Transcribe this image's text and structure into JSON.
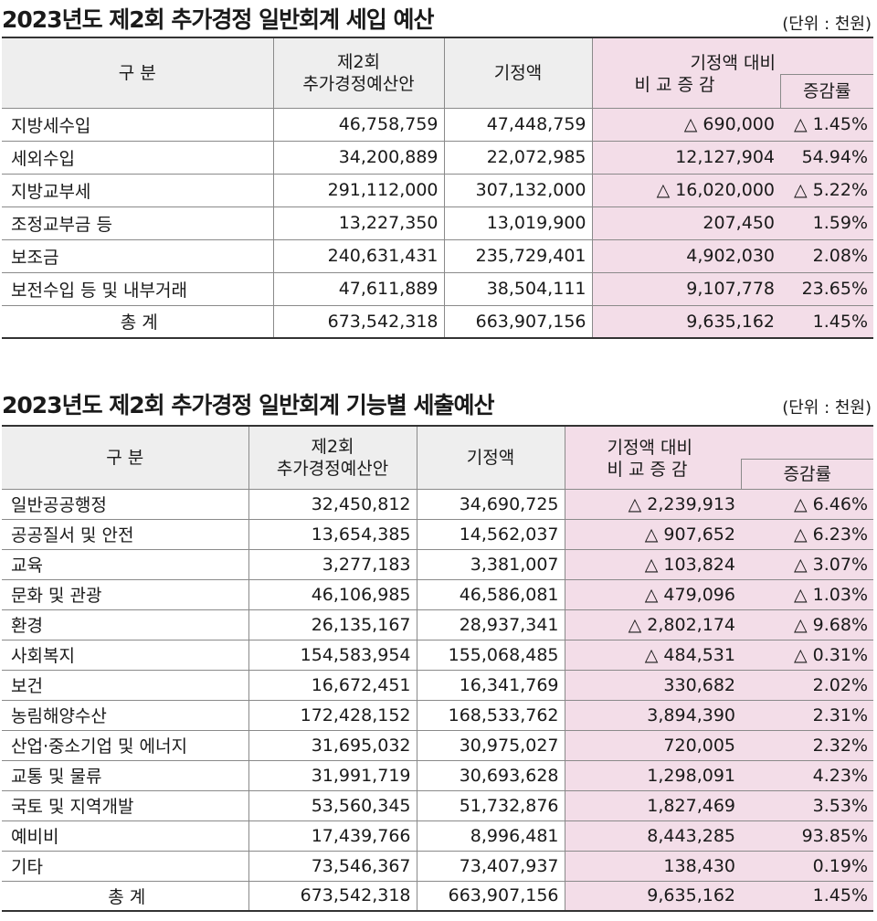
{
  "revenue": {
    "title": "2023년도 제2회 추가경정 일반회계 세입 예산",
    "unit": "(단위 : 천원)",
    "headers": {
      "category": "구 분",
      "proposal_line1": "제2회",
      "proposal_line2": "추가경정예산안",
      "existing": "기정액",
      "compare_line1": "기정액 대비",
      "compare_line2": "비 교 증 감",
      "rate": "증감률"
    },
    "rows": [
      {
        "name": "지방세수입",
        "proposal": "46,758,759",
        "existing": "47,448,759",
        "diff": "△ 690,000",
        "rate": "△ 1.45%"
      },
      {
        "name": "세외수입",
        "proposal": "34,200,889",
        "existing": "22,072,985",
        "diff": "12,127,904",
        "rate": "54.94%"
      },
      {
        "name": "지방교부세",
        "proposal": "291,112,000",
        "existing": "307,132,000",
        "diff": "△ 16,020,000",
        "rate": "△ 5.22%"
      },
      {
        "name": "조정교부금 등",
        "proposal": "13,227,350",
        "existing": "13,019,900",
        "diff": "207,450",
        "rate": "1.59%"
      },
      {
        "name": "보조금",
        "proposal": "240,631,431",
        "existing": "235,729,401",
        "diff": "4,902,030",
        "rate": "2.08%"
      },
      {
        "name": "보전수입 등 및 내부거래",
        "proposal": "47,611,889",
        "existing": "38,504,111",
        "diff": "9,107,778",
        "rate": "23.65%"
      }
    ],
    "total": {
      "name": "총 계",
      "proposal": "673,542,318",
      "existing": "663,907,156",
      "diff": "9,635,162",
      "rate": "1.45%"
    }
  },
  "expenditure": {
    "title": "2023년도 제2회 추가경정 일반회계 기능별 세출예산",
    "unit": "(단위 : 천원)",
    "headers": {
      "category": "구 분",
      "proposal_line1": "제2회",
      "proposal_line2": "추가경정예산안",
      "existing": "기정액",
      "compare_line1": "기정액 대비",
      "compare_line2": "비 교 증 감",
      "rate": "증감률"
    },
    "rows": [
      {
        "name": "일반공공행정",
        "proposal": "32,450,812",
        "existing": "34,690,725",
        "diff": "△ 2,239,913",
        "rate": "△ 6.46%"
      },
      {
        "name": "공공질서 및 안전",
        "proposal": "13,654,385",
        "existing": "14,562,037",
        "diff": "△ 907,652",
        "rate": "△ 6.23%"
      },
      {
        "name": "교육",
        "proposal": "3,277,183",
        "existing": "3,381,007",
        "diff": "△ 103,824",
        "rate": "△ 3.07%"
      },
      {
        "name": "문화 및 관광",
        "proposal": "46,106,985",
        "existing": "46,586,081",
        "diff": "△ 479,096",
        "rate": "△ 1.03%"
      },
      {
        "name": "환경",
        "proposal": "26,135,167",
        "existing": "28,937,341",
        "diff": "△ 2,802,174",
        "rate": "△ 9.68%"
      },
      {
        "name": "사회복지",
        "proposal": "154,583,954",
        "existing": "155,068,485",
        "diff": "△ 484,531",
        "rate": "△ 0.31%"
      },
      {
        "name": "보건",
        "proposal": "16,672,451",
        "existing": "16,341,769",
        "diff": "330,682",
        "rate": "2.02%"
      },
      {
        "name": "농림해양수산",
        "proposal": "172,428,152",
        "existing": "168,533,762",
        "diff": "3,894,390",
        "rate": "2.31%"
      },
      {
        "name": "산업·중소기업 및 에너지",
        "proposal": "31,695,032",
        "existing": "30,975,027",
        "diff": "720,005",
        "rate": "2.32%"
      },
      {
        "name": "교통 및 물류",
        "proposal": "31,991,719",
        "existing": "30,693,628",
        "diff": "1,298,091",
        "rate": "4.23%"
      },
      {
        "name": "국토 및 지역개발",
        "proposal": "53,560,345",
        "existing": "51,732,876",
        "diff": "1,827,469",
        "rate": "3.53%"
      },
      {
        "name": "예비비",
        "proposal": "17,439,766",
        "existing": "8,996,481",
        "diff": "8,443,285",
        "rate": "93.85%"
      },
      {
        "name": "기타",
        "proposal": "73,546,367",
        "existing": "73,407,937",
        "diff": "138,430",
        "rate": "0.19%"
      }
    ],
    "total": {
      "name": "총 계",
      "proposal": "673,542,318",
      "existing": "663,907,156",
      "diff": "9,635,162",
      "rate": "1.45%"
    }
  }
}
